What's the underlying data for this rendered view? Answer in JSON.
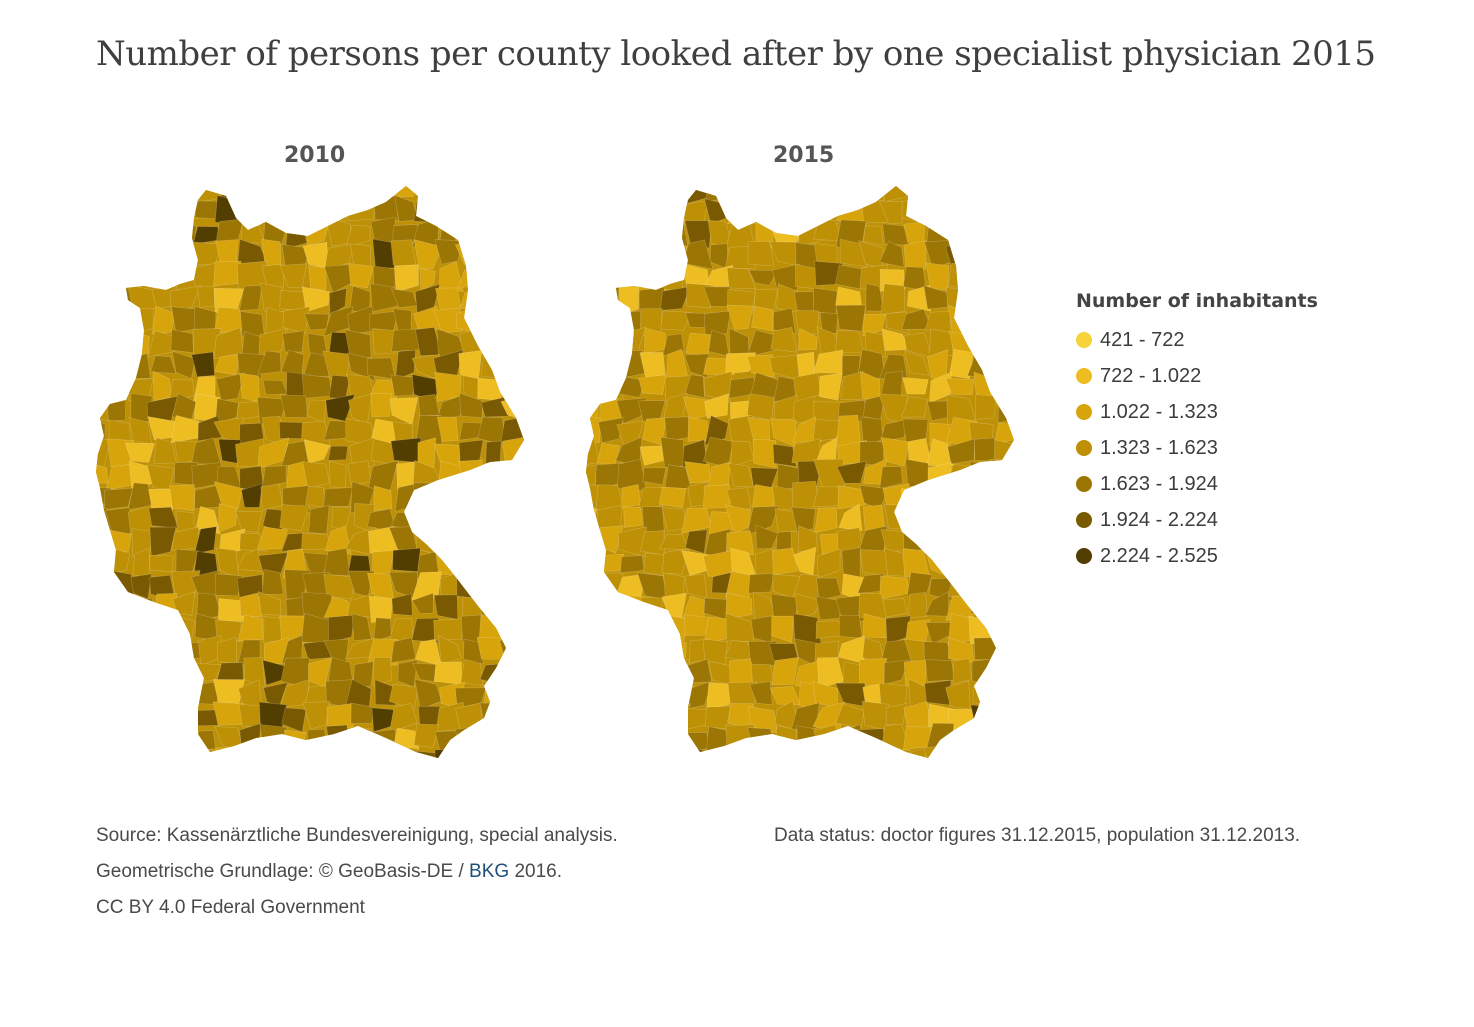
{
  "title": "Number of persons per county looked after by one specialist physician 2015",
  "maps": [
    {
      "year": "2010"
    },
    {
      "year": "2015"
    }
  ],
  "legend": {
    "title": "Number of inhabitants",
    "items": [
      {
        "label": "421 - 722",
        "color": "#f7d33a"
      },
      {
        "label": "722 - 1.022",
        "color": "#eebd22"
      },
      {
        "label": "1.022 - 1.323",
        "color": "#d7a40c"
      },
      {
        "label": "1.323 - 1.623",
        "color": "#bd9006"
      },
      {
        "label": "1.623 - 1.924",
        "color": "#9c7604"
      },
      {
        "label": "1.924 - 2.224",
        "color": "#795a02"
      },
      {
        "label": "2.224 - 2.525",
        "color": "#533e01"
      }
    ]
  },
  "footer": {
    "source": "Source: Kassenärztliche Bundesvereinigung, special analysis.",
    "geo_prefix": "Geometrische Grundlage: © GeoBasis-DE / ",
    "geo_link": "BKG",
    "geo_suffix": " 2016.",
    "license": "CC BY 4.0 Federal Government",
    "data_status": "Data status: doctor figures 31.12.2015, population 31.12.2013."
  }
}
